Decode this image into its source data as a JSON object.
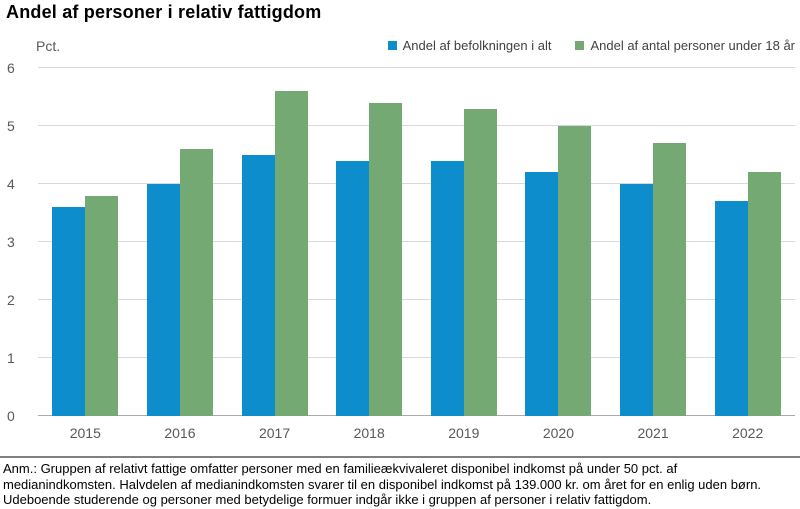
{
  "page_title": "Andel af personer i relativ fattigdom",
  "chart_data": {
    "type": "bar",
    "title": "Andel af personer i relativ fattigdom",
    "unit_label": "Pct.",
    "categories": [
      "2015",
      "2016",
      "2017",
      "2018",
      "2019",
      "2020",
      "2021",
      "2022"
    ],
    "series": [
      {
        "name": "Andel af befolkningen i alt",
        "color": "#0d8dcb",
        "values": [
          3.6,
          4.0,
          4.5,
          4.4,
          4.4,
          4.2,
          4.0,
          3.7
        ]
      },
      {
        "name": "Andel af antal personer under 18 år",
        "color": "#75a973",
        "values": [
          3.8,
          4.6,
          5.6,
          5.4,
          5.3,
          5.0,
          4.7,
          4.2
        ]
      }
    ],
    "ylim": [
      0,
      6
    ],
    "yticks": [
      0,
      1,
      2,
      3,
      4,
      5,
      6
    ],
    "grid": true,
    "legend_position": "top-right",
    "colors": {
      "gridline": "#d9d9d9",
      "axis_line": "#ababab",
      "tick_label": "#58595b",
      "legend_text": "#414141"
    }
  },
  "footnote": {
    "lines": [
      "Anm.: Gruppen af relativt fattige omfatter personer med en familieækvivaleret disponibel indkomst på under 50 pct. af",
      "medianindkomsten. Halvdelen af medianindkomsten svarer til en disponibel indkomst på 139.000 kr. om året for en enlig uden børn.",
      "Udeboende studerende og personer med betydelige formuer indgår ikke i gruppen af personer i relativ fattigdom."
    ]
  }
}
